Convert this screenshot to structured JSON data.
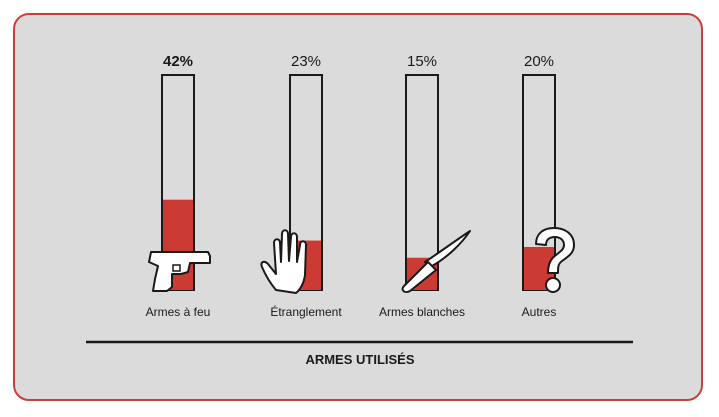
{
  "chart_data": {
    "type": "bar",
    "title": "ARMES UTILISÉS",
    "categories": [
      "Armes à feu",
      "Étranglement",
      "Armes blanches",
      "Autres"
    ],
    "labels": [
      "42%",
      "23%",
      "15%",
      "20%"
    ],
    "values": [
      42,
      23,
      15,
      20
    ],
    "ylim": [
      0,
      100
    ],
    "icons": [
      "pistol-icon",
      "hand-icon",
      "knife-icon",
      "question-mark-icon"
    ],
    "colors": {
      "fill": "#cc3b33",
      "outline": "#1a1a1a",
      "border": "#c8403a",
      "background": "#dbdbdb"
    }
  }
}
